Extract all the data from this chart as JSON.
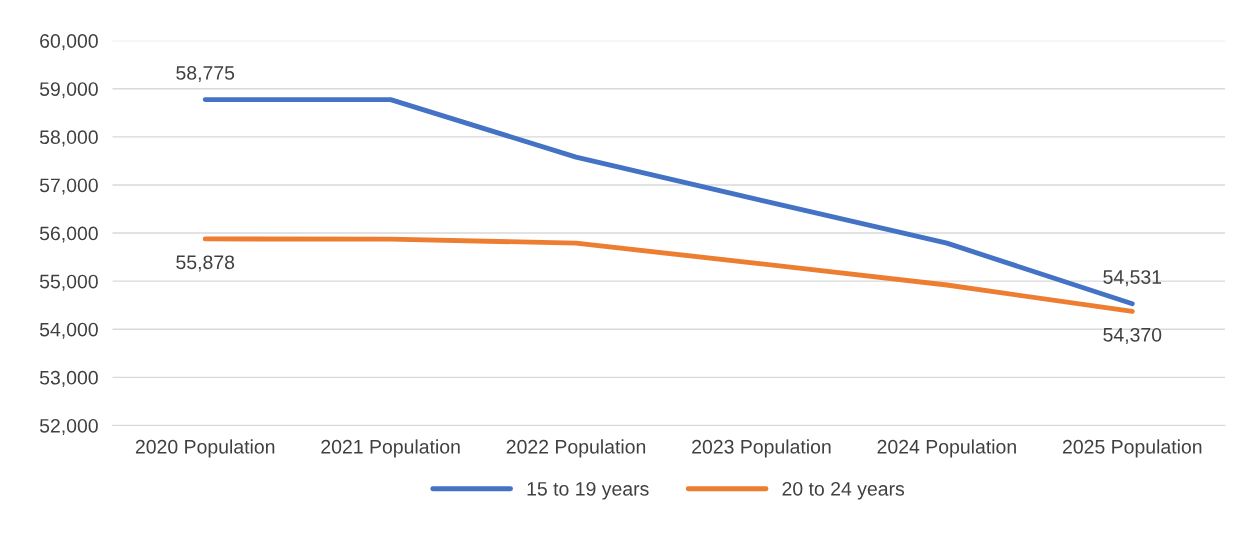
{
  "chart_data": {
    "type": "line",
    "categories": [
      "2020 Population",
      "2021 Population",
      "2022 Population",
      "2023 Population",
      "2024 Population",
      "2025 Population"
    ],
    "series": [
      {
        "name": "15 to 19 years",
        "color": "#4472c4",
        "values": [
          58775,
          58775,
          57580,
          56680,
          55790,
          54531
        ],
        "value_labels": [
          "58,775",
          null,
          null,
          null,
          null,
          "54,531"
        ]
      },
      {
        "name": "20 to 24 years",
        "color": "#ed7d31",
        "values": [
          55878,
          55875,
          55790,
          55360,
          54920,
          54370
        ],
        "value_labels": [
          "55,878",
          null,
          null,
          null,
          null,
          "54,370"
        ]
      }
    ],
    "ylim": [
      52000,
      60000
    ],
    "yticks": [
      {
        "value": 52000,
        "label": "52,000"
      },
      {
        "value": 53000,
        "label": "53,000"
      },
      {
        "value": 54000,
        "label": "54,000"
      },
      {
        "value": 55000,
        "label": "55,000"
      },
      {
        "value": 56000,
        "label": "56,000"
      },
      {
        "value": 57000,
        "label": "57,000"
      },
      {
        "value": 58000,
        "label": "58,000"
      },
      {
        "value": 59000,
        "label": "59,000"
      },
      {
        "value": 60000,
        "label": "60,000"
      }
    ],
    "grid": "y",
    "legend": "bottom",
    "marker": "none",
    "line_style": "solid"
  }
}
